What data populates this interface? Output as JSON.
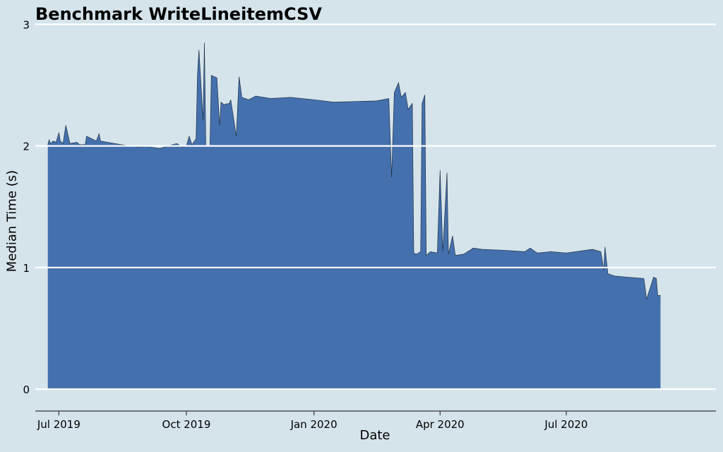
{
  "chart_data": {
    "type": "area",
    "title": "Benchmark WriteLineitemCSV",
    "xlabel": "Date",
    "ylabel": "Median Time (s)",
    "x_ticks": [
      {
        "label": "Jul 2019",
        "date": "2019-07-01"
      },
      {
        "label": "Oct 2019",
        "date": "2019-10-01"
      },
      {
        "label": "Jan 2020",
        "date": "2020-01-01"
      },
      {
        "label": "Apr 2020",
        "date": "2020-04-01"
      },
      {
        "label": "Jul 2020",
        "date": "2020-07-01"
      }
    ],
    "y_ticks": [
      0,
      1,
      2,
      3
    ],
    "xlim": [
      "2019-06-14",
      "2020-10-17"
    ],
    "ylim": [
      -0.18,
      3.2
    ],
    "grid": "horizontal",
    "series": [
      {
        "color": "#4471ad",
        "points": [
          [
            "2019-06-23",
            2.01
          ],
          [
            "2019-06-24",
            2.05
          ],
          [
            "2019-06-25",
            2.02
          ],
          [
            "2019-06-27",
            2.04
          ],
          [
            "2019-06-29",
            2.03
          ],
          [
            "2019-07-01",
            2.11
          ],
          [
            "2019-07-02",
            2.04
          ],
          [
            "2019-07-04",
            2.02
          ],
          [
            "2019-07-06",
            2.17
          ],
          [
            "2019-07-09",
            2.02
          ],
          [
            "2019-07-14",
            2.03
          ],
          [
            "2019-07-16",
            2.01
          ],
          [
            "2019-07-20",
            2.01
          ],
          [
            "2019-07-21",
            2.08
          ],
          [
            "2019-07-28",
            2.04
          ],
          [
            "2019-07-30",
            2.1
          ],
          [
            "2019-07-31",
            2.04
          ],
          [
            "2019-08-15",
            2.01
          ],
          [
            "2019-08-28",
            1.99
          ],
          [
            "2019-09-02",
            2.0
          ],
          [
            "2019-09-05",
            1.99
          ],
          [
            "2019-09-12",
            1.98
          ],
          [
            "2019-09-18",
            2.0
          ],
          [
            "2019-09-24",
            2.02
          ],
          [
            "2019-09-28",
            1.99
          ],
          [
            "2019-10-01",
            2.0
          ],
          [
            "2019-10-03",
            2.08
          ],
          [
            "2019-10-05",
            2.01
          ],
          [
            "2019-10-08",
            2.06
          ],
          [
            "2019-10-09",
            2.58
          ],
          [
            "2019-10-10",
            2.79
          ],
          [
            "2019-10-11",
            2.61
          ],
          [
            "2019-10-13",
            2.21
          ],
          [
            "2019-10-14",
            2.85
          ],
          [
            "2019-10-15",
            2.0
          ],
          [
            "2019-10-18",
            2.0
          ],
          [
            "2019-10-19",
            2.58
          ],
          [
            "2019-10-23",
            2.56
          ],
          [
            "2019-10-25",
            2.17
          ],
          [
            "2019-10-26",
            2.36
          ],
          [
            "2019-10-28",
            2.34
          ],
          [
            "2019-11-01",
            2.35
          ],
          [
            "2019-11-02",
            2.38
          ],
          [
            "2019-11-06",
            2.08
          ],
          [
            "2019-11-08",
            2.57
          ],
          [
            "2019-11-10",
            2.4
          ],
          [
            "2019-11-15",
            2.38
          ],
          [
            "2019-11-20",
            2.41
          ],
          [
            "2019-12-01",
            2.39
          ],
          [
            "2019-12-15",
            2.4
          ],
          [
            "2020-01-01",
            2.38
          ],
          [
            "2020-01-15",
            2.36
          ],
          [
            "2020-02-15",
            2.37
          ],
          [
            "2020-02-24",
            2.39
          ],
          [
            "2020-02-26",
            1.74
          ],
          [
            "2020-02-28",
            2.44
          ],
          [
            "2020-03-02",
            2.52
          ],
          [
            "2020-03-04",
            2.4
          ],
          [
            "2020-03-07",
            2.44
          ],
          [
            "2020-03-09",
            2.3
          ],
          [
            "2020-03-12",
            2.35
          ],
          [
            "2020-03-13",
            1.12
          ],
          [
            "2020-03-15",
            1.11
          ],
          [
            "2020-03-18",
            1.13
          ],
          [
            "2020-03-19",
            2.35
          ],
          [
            "2020-03-21",
            2.42
          ],
          [
            "2020-03-22",
            1.1
          ],
          [
            "2020-03-25",
            1.13
          ],
          [
            "2020-03-30",
            1.12
          ],
          [
            "2020-04-01",
            1.8
          ],
          [
            "2020-04-03",
            1.13
          ],
          [
            "2020-04-06",
            1.78
          ],
          [
            "2020-04-07",
            1.11
          ],
          [
            "2020-04-10",
            1.26
          ],
          [
            "2020-04-12",
            1.1
          ],
          [
            "2020-04-18",
            1.11
          ],
          [
            "2020-04-25",
            1.16
          ],
          [
            "2020-05-01",
            1.15
          ],
          [
            "2020-05-20",
            1.14
          ],
          [
            "2020-06-01",
            1.13
          ],
          [
            "2020-06-05",
            1.16
          ],
          [
            "2020-06-10",
            1.12
          ],
          [
            "2020-06-20",
            1.13
          ],
          [
            "2020-07-01",
            1.12
          ],
          [
            "2020-07-20",
            1.15
          ],
          [
            "2020-07-26",
            1.13
          ],
          [
            "2020-07-28",
            0.98
          ],
          [
            "2020-07-29",
            1.17
          ],
          [
            "2020-07-31",
            0.95
          ],
          [
            "2020-08-05",
            0.93
          ],
          [
            "2020-08-15",
            0.92
          ],
          [
            "2020-08-26",
            0.91
          ],
          [
            "2020-08-28",
            0.74
          ],
          [
            "2020-09-02",
            0.92
          ],
          [
            "2020-09-04",
            0.91
          ],
          [
            "2020-09-05",
            0.77
          ],
          [
            "2020-09-07",
            0.77
          ]
        ]
      }
    ]
  }
}
